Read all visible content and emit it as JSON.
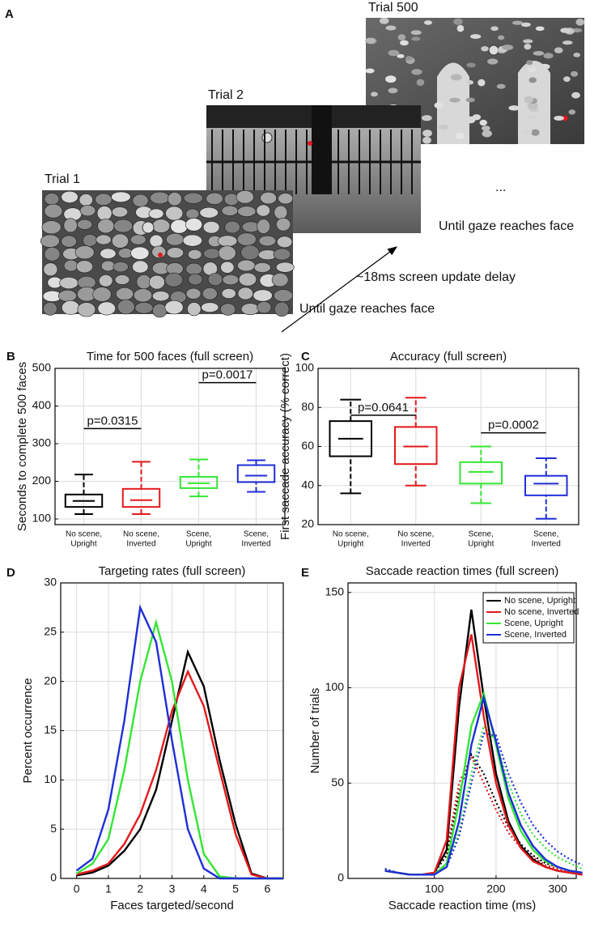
{
  "figure_a": {
    "panel": "A",
    "trials": [
      {
        "label": "Trial 1"
      },
      {
        "label": "Trial 2"
      },
      {
        "label": "Trial 500"
      }
    ],
    "ellipsis": "...",
    "until_top": "Until gaze reaches face",
    "delay": "~18ms screen update delay",
    "until_bottom": "Until gaze reaches face"
  },
  "chart_data": [
    {
      "type": "box",
      "panel": "B",
      "title": "Time for 500 faces (full screen)",
      "ylabel": "Seconds to complete 500 faces",
      "categories": [
        [
          "No scene,",
          "Upright"
        ],
        [
          "No scene,",
          "Inverted"
        ],
        [
          "Scene,",
          "Upright"
        ],
        [
          "Scene,",
          "Inverted"
        ]
      ],
      "colors": [
        "#000000",
        "#e3191c",
        "#33e633",
        "#1f2ed6"
      ],
      "boxes": [
        {
          "low": 113,
          "q1": 132,
          "median": 148,
          "q3": 165,
          "high": 218
        },
        {
          "low": 113,
          "q1": 132,
          "median": 150,
          "q3": 180,
          "high": 252
        },
        {
          "low": 160,
          "q1": 182,
          "median": 195,
          "q3": 212,
          "high": 258
        },
        {
          "low": 172,
          "q1": 198,
          "median": 215,
          "q3": 243,
          "high": 256
        }
      ],
      "annotations": [
        {
          "text": "p=0.0315",
          "from": 0,
          "to": 1,
          "y": 340
        },
        {
          "text": "p=0.0017",
          "from": 2,
          "to": 3,
          "y": 462
        }
      ],
      "ylim": [
        85,
        500
      ],
      "yticks": [
        100,
        200,
        300,
        400,
        500
      ],
      "grid": true
    },
    {
      "type": "box",
      "panel": "C",
      "title": "Accuracy (full screen)",
      "ylabel": "First saccade accuracy (% correct)",
      "categories": [
        [
          "No scene,",
          "Upright"
        ],
        [
          "No scene,",
          "Inverted"
        ],
        [
          "Scene,",
          "Upright"
        ],
        [
          "Scene,",
          "Inverted"
        ]
      ],
      "colors": [
        "#000000",
        "#e3191c",
        "#33e633",
        "#1f2ed6"
      ],
      "boxes": [
        {
          "low": 36,
          "q1": 55,
          "median": 64,
          "q3": 73,
          "high": 84
        },
        {
          "low": 40,
          "q1": 51,
          "median": 60,
          "q3": 70,
          "high": 85
        },
        {
          "low": 31,
          "q1": 41,
          "median": 47,
          "q3": 52,
          "high": 60
        },
        {
          "low": 23,
          "q1": 35,
          "median": 41,
          "q3": 45,
          "high": 54
        }
      ],
      "annotations": [
        {
          "text": "p=0.0641",
          "from": 0,
          "to": 1,
          "y": 76
        },
        {
          "text": "p=0.0002",
          "from": 2,
          "to": 3,
          "y": 67
        }
      ],
      "ylim": [
        20,
        100
      ],
      "yticks": [
        20,
        40,
        60,
        80,
        100
      ],
      "grid": true
    },
    {
      "type": "line",
      "panel": "D",
      "title": "Targeting rates (full screen)",
      "xlabel": "Faces targeted/second",
      "ylabel": "Percent occurrence",
      "x": [
        0,
        0.5,
        1,
        1.5,
        2,
        2.5,
        3,
        3.5,
        4,
        4.5,
        5,
        5.5,
        6,
        6.5
      ],
      "series": [
        {
          "color": "#000000",
          "values": [
            0.3,
            0.6,
            1.3,
            2.8,
            5,
            9,
            16,
            23,
            19.5,
            12,
            5.5,
            0.5,
            0,
            0
          ]
        },
        {
          "color": "#e3191c",
          "values": [
            0.4,
            0.8,
            1.5,
            3.5,
            6.5,
            11,
            17,
            21,
            17.5,
            11,
            4.5,
            0.4,
            0,
            0
          ]
        },
        {
          "color": "#33e633",
          "values": [
            0.5,
            1.5,
            4,
            11,
            20,
            26,
            20,
            10,
            2.5,
            0.2,
            0,
            0,
            0,
            0
          ]
        },
        {
          "color": "#1f2ed6",
          "values": [
            0.8,
            2,
            7,
            16,
            27.5,
            24,
            14,
            5,
            1,
            0,
            0,
            0,
            0,
            0
          ]
        }
      ],
      "xlim": [
        -0.5,
        6.5
      ],
      "xticks": [
        0,
        1,
        2,
        3,
        4,
        5,
        6
      ],
      "ylim": [
        0,
        30
      ],
      "yticks": [
        0,
        5,
        10,
        15,
        20,
        25,
        30
      ],
      "grid": true
    },
    {
      "type": "line",
      "panel": "E",
      "title": "Saccade reaction times (full screen)",
      "xlabel": "Saccade reaction time (ms)",
      "ylabel": "Number of trials",
      "x": [
        20,
        40,
        60,
        80,
        100,
        120,
        140,
        160,
        180,
        200,
        220,
        240,
        260,
        280,
        300,
        320,
        340
      ],
      "series": [
        {
          "name": "No scene, Upright",
          "color": "#000000",
          "values": [
            4,
            3,
            2,
            2,
            3,
            15,
            90,
            141,
            95,
            55,
            30,
            17,
            10,
            6,
            4,
            3,
            2
          ],
          "dotted_values": [
            5,
            3,
            2,
            2,
            3,
            12,
            45,
            65,
            55,
            40,
            27,
            18,
            12,
            8,
            6,
            4,
            3
          ]
        },
        {
          "name": "No scene, Inverted",
          "color": "#e3191c",
          "values": [
            4,
            3,
            2,
            2,
            3,
            20,
            100,
            128,
            85,
            50,
            28,
            16,
            9,
            6,
            4,
            3,
            2
          ],
          "dotted_values": [
            5,
            3,
            2,
            2,
            3,
            14,
            50,
            64,
            50,
            36,
            24,
            16,
            11,
            7,
            5,
            4,
            3
          ]
        },
        {
          "name": "Scene, Upright",
          "color": "#33e633",
          "values": [
            4,
            3,
            2,
            2,
            2,
            8,
            40,
            80,
            97,
            70,
            42,
            25,
            15,
            9,
            6,
            4,
            3
          ],
          "dotted_values": [
            5,
            3,
            2,
            2,
            3,
            6,
            25,
            55,
            80,
            72,
            50,
            34,
            23,
            16,
            11,
            8,
            5
          ]
        },
        {
          "name": "Scene, Inverted",
          "color": "#1f2ed6",
          "values": [
            4,
            3,
            2,
            2,
            2,
            6,
            30,
            70,
            95,
            72,
            45,
            28,
            17,
            10,
            6,
            4,
            3
          ],
          "dotted_values": [
            5,
            3,
            2,
            2,
            3,
            6,
            22,
            50,
            76,
            75,
            55,
            40,
            28,
            20,
            14,
            10,
            7
          ]
        }
      ],
      "legend": "upper right",
      "xlim": [
        -40,
        330
      ],
      "xticks": [
        100,
        200,
        300
      ],
      "ylim": [
        0,
        155
      ],
      "yticks": [
        0,
        50,
        100,
        150
      ],
      "grid": true
    }
  ]
}
